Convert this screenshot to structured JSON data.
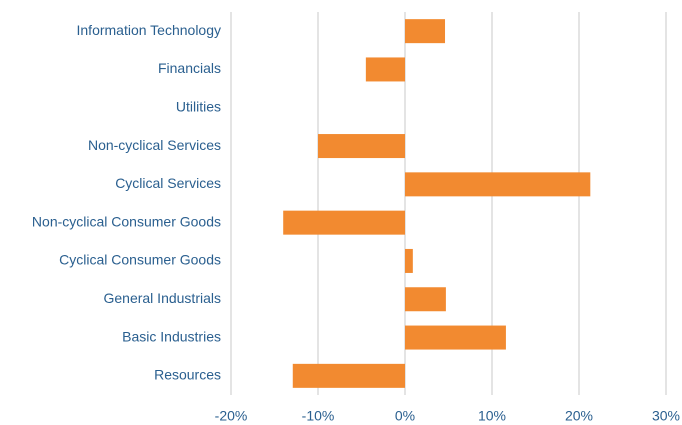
{
  "chart_data": {
    "type": "hbar",
    "categories": [
      "Information Technology",
      "Financials",
      "Utilities",
      "Non-cyclical Services",
      "Cyclical Services",
      "Non-cyclical Consumer Goods",
      "Cyclical Consumer Goods",
      "General Industrials",
      "Basic Industries",
      "Resources"
    ],
    "values": [
      4.6,
      -4.5,
      0,
      -10.0,
      21.3,
      -14.0,
      0.9,
      4.7,
      11.6,
      -12.9
    ],
    "color": "#f28a30",
    "xlim": [
      -20,
      30
    ],
    "xticks": [
      {
        "value": -20,
        "label": "-20%"
      },
      {
        "value": -10,
        "label": "-10%"
      },
      {
        "value": 0,
        "label": "0%"
      },
      {
        "value": 10,
        "label": "10%"
      },
      {
        "value": 20,
        "label": "20%"
      },
      {
        "value": 30,
        "label": "30%"
      }
    ],
    "grid": true
  }
}
